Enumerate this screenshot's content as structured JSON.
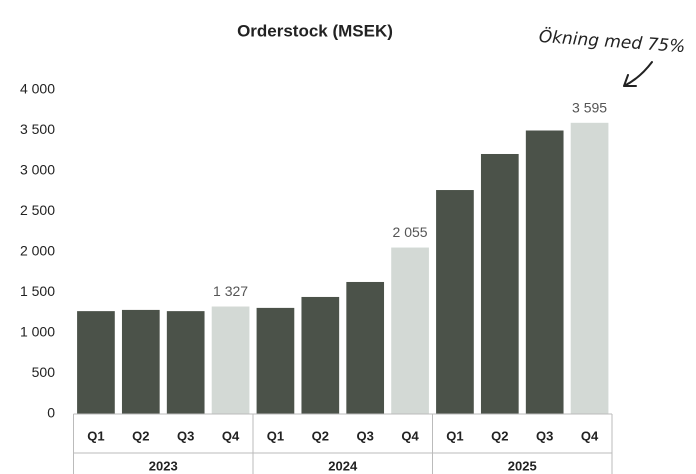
{
  "chart_data": {
    "type": "bar",
    "title": "Orderstock (MSEK)",
    "annotation": "Ökning med 75%",
    "categories": [
      "Q1",
      "Q2",
      "Q3",
      "Q4",
      "Q1",
      "Q2",
      "Q3",
      "Q4",
      "Q1",
      "Q2",
      "Q3",
      "Q4"
    ],
    "group_labels": [
      "2023",
      "2024",
      "2025"
    ],
    "values": [
      1270,
      1285,
      1270,
      1327,
      1310,
      1445,
      1630,
      2055,
      2765,
      3210,
      3500,
      3595
    ],
    "value_labels": [
      null,
      null,
      null,
      "1 327",
      null,
      null,
      null,
      "2 055",
      null,
      null,
      null,
      "3 595"
    ],
    "colors": [
      "#4b5249",
      "#4b5249",
      "#4b5249",
      "#d3d9d5",
      "#4b5249",
      "#4b5249",
      "#4b5249",
      "#d3d9d5",
      "#4b5249",
      "#4b5249",
      "#4b5249",
      "#d3d9d5"
    ],
    "ylim": [
      0,
      4000
    ],
    "yticks": [
      0,
      500,
      {
        "value": 1000,
        "label": "1 000"
      },
      {
        "value": 1500,
        "label": "1 500"
      },
      {
        "value": 2000,
        "label": "2 000"
      },
      {
        "value": 2500,
        "label": "2 500"
      },
      {
        "value": 3000,
        "label": "3 000"
      },
      {
        "value": 3500,
        "label": "3 500"
      },
      {
        "value": 4000,
        "label": "4 000"
      }
    ],
    "grid": false
  }
}
